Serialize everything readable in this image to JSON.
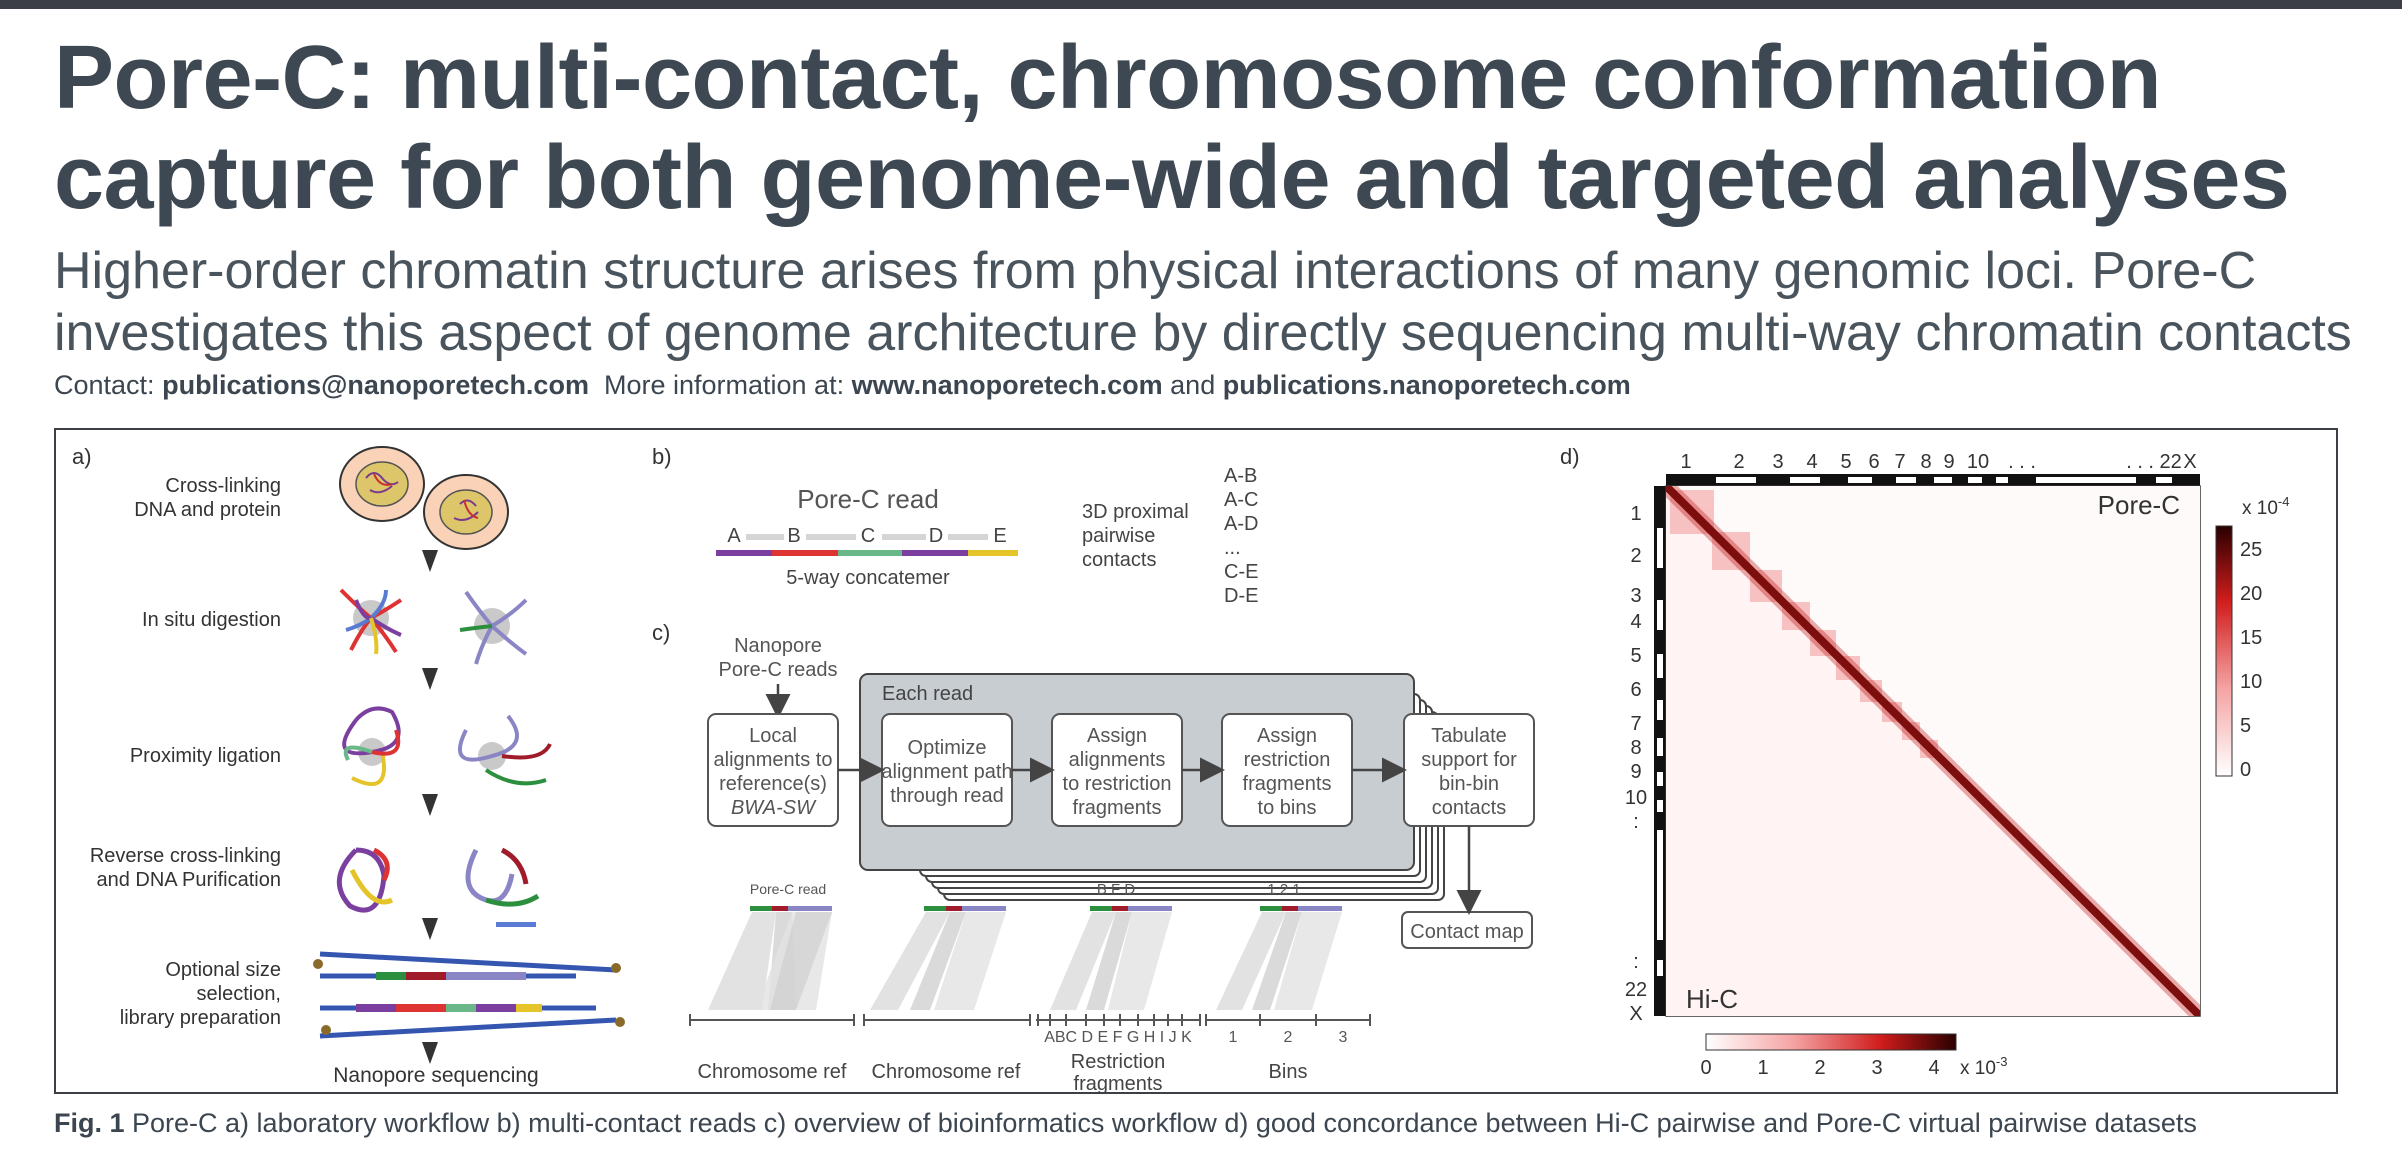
{
  "title": {
    "line1": "Pore-C: multi-contact, chromosome conformation",
    "line2": "capture for both genome-wide and targeted analyses"
  },
  "subtitle": {
    "line1": "Higher-order chromatin structure arises from physical interactions of many genomic loci. Pore-C",
    "line2": "investigates this aspect of genome architecture by directly sequencing multi-way chromatin contacts"
  },
  "contact": {
    "label": "Contact:",
    "email": "publications@nanoporetech.com",
    "more_label": "More information at:",
    "site1": "www.nanoporetech.com",
    "and": "and",
    "site2": "publications.nanoporetech.com"
  },
  "panel_a": {
    "label": "a)",
    "steps": [
      {
        "line1": "Cross-linking",
        "line2": "DNA and protein"
      },
      {
        "line1": "In situ digestion"
      },
      {
        "line1": "Proximity ligation"
      },
      {
        "line1": "Reverse cross-linking",
        "line2": "and DNA Purification"
      },
      {
        "line1": "Optional size",
        "line2": "selection,",
        "line3": "library preparation"
      }
    ],
    "final_step": "Nanopore sequencing"
  },
  "panel_b": {
    "label": "b)",
    "read_title": "Pore-C read",
    "segments": [
      "A",
      "B",
      "C",
      "D",
      "E"
    ],
    "concatemer": "5-way concatemer",
    "contacts_line1": "3D proximal",
    "contacts_line2": "pairwise",
    "contacts_line3": "contacts",
    "pairs": [
      "A-B",
      "A-C",
      "A-D",
      "...",
      "C-E",
      "D-E"
    ]
  },
  "panel_c": {
    "label": "c)",
    "input_line1": "Nanopore",
    "input_line2": "Pore-C reads",
    "each_read": "Each read",
    "box1": {
      "line1": "Local",
      "line2": "alignments to",
      "line3": "reference(s)",
      "line4": "BWA-SW"
    },
    "box2": {
      "line1": "Optimize",
      "line2": "alignment path",
      "line3": "through read"
    },
    "box3": {
      "line1": "Assign",
      "line2": "alignments",
      "line3": "to restriction",
      "line4": "fragments"
    },
    "box4": {
      "line1": "Assign",
      "line2": "restriction",
      "line3": "fragments",
      "line4": "to bins"
    },
    "box5": {
      "line1": "Tabulate",
      "line2": "support for",
      "line3": "bin-bin",
      "line4": "contacts"
    },
    "contact_map": "Contact map",
    "mini_read": "Pore-C read",
    "frag_letters": "B F    D",
    "bin_numbers": "1  2    1",
    "ref_letters": "ABC D E F G H I J K",
    "bin_ticks": [
      "1",
      "2",
      "3"
    ],
    "bottom1": "Chromosome ref",
    "bottom2": "Chromosome ref",
    "bottom3_line1": "Restriction",
    "bottom3_line2": "fragments",
    "bottom4": "Bins"
  },
  "panel_d": {
    "label": "d)",
    "top_chroms": [
      "1",
      "2",
      "3",
      "4",
      "5",
      "6",
      "7",
      "8",
      "9",
      "10",
      ". . .",
      ". . . 22",
      "X"
    ],
    "left_chroms": [
      "1",
      "2",
      "3",
      "4",
      "5",
      "6",
      "7",
      "8",
      "9",
      "10",
      ":",
      ":",
      "22",
      "X"
    ],
    "porec_label": "Pore-C",
    "hic_label": "Hi-C",
    "porec_scale_exp": "x 10",
    "porec_scale_pow": "-4",
    "porec_ticks": [
      "25",
      "20",
      "15",
      "10",
      "5",
      "0"
    ],
    "hic_ticks": [
      "0",
      "1",
      "2",
      "3",
      "4"
    ],
    "hic_scale_exp": "x 10",
    "hic_scale_pow": "-3"
  },
  "caption": {
    "fig": "Fig. 1",
    "text": " Pore-C a) laboratory workflow b) multi-contact reads c) overview of bioinformatics workflow d) good concordance between Hi-C pairwise and Pore-C virtual pairwise datasets"
  }
}
